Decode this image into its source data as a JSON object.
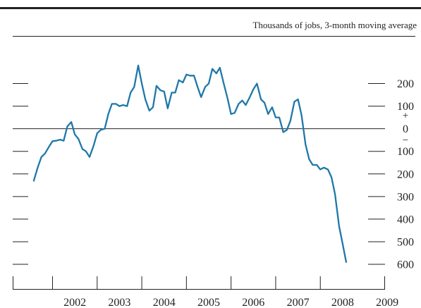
{
  "chart_data": {
    "type": "line",
    "unit_label": "Thousands of jobs, 3-month moving average",
    "x_tick_labels": [
      "2002",
      "2003",
      "2004",
      "2005",
      "2006",
      "2007",
      "2008",
      "2009"
    ],
    "y_tick_labels": [
      "200",
      "100",
      "0",
      "100",
      "200",
      "300",
      "400",
      "500",
      "600"
    ],
    "y_tick_values": [
      200,
      100,
      0,
      -100,
      -200,
      -300,
      -400,
      -500,
      -600
    ],
    "sign_labels": {
      "plus": "+",
      "minus": "−"
    },
    "xlim": [
      2001.55,
      2009.45
    ],
    "ylim": [
      -600,
      300
    ],
    "grid": false,
    "line_color": "#1d78a8",
    "series": [
      {
        "points": [
          [
            2001.58,
            -230
          ],
          [
            2001.67,
            -170
          ],
          [
            2001.75,
            -125
          ],
          [
            2001.83,
            -110
          ],
          [
            2001.92,
            -80
          ],
          [
            2002.0,
            -55
          ],
          [
            2002.08,
            -53
          ],
          [
            2002.17,
            -48
          ],
          [
            2002.25,
            -53
          ],
          [
            2002.33,
            10
          ],
          [
            2002.42,
            30
          ],
          [
            2002.5,
            -25
          ],
          [
            2002.58,
            -45
          ],
          [
            2002.67,
            -90
          ],
          [
            2002.75,
            -100
          ],
          [
            2002.83,
            -125
          ],
          [
            2002.92,
            -75
          ],
          [
            2003.0,
            -20
          ],
          [
            2003.08,
            -5
          ],
          [
            2003.17,
            0
          ],
          [
            2003.25,
            65
          ],
          [
            2003.33,
            110
          ],
          [
            2003.42,
            110
          ],
          [
            2003.5,
            100
          ],
          [
            2003.58,
            105
          ],
          [
            2003.67,
            100
          ],
          [
            2003.75,
            160
          ],
          [
            2003.83,
            185
          ],
          [
            2003.92,
            280
          ],
          [
            2004.0,
            200
          ],
          [
            2004.08,
            130
          ],
          [
            2004.17,
            80
          ],
          [
            2004.25,
            95
          ],
          [
            2004.33,
            190
          ],
          [
            2004.42,
            170
          ],
          [
            2004.5,
            165
          ],
          [
            2004.58,
            90
          ],
          [
            2004.67,
            160
          ],
          [
            2004.75,
            160
          ],
          [
            2004.83,
            215
          ],
          [
            2004.92,
            205
          ],
          [
            2005.0,
            240
          ],
          [
            2005.08,
            235
          ],
          [
            2005.17,
            235
          ],
          [
            2005.25,
            185
          ],
          [
            2005.33,
            140
          ],
          [
            2005.42,
            185
          ],
          [
            2005.5,
            200
          ],
          [
            2005.58,
            265
          ],
          [
            2005.67,
            245
          ],
          [
            2005.75,
            270
          ],
          [
            2005.83,
            205
          ],
          [
            2005.92,
            135
          ],
          [
            2006.0,
            65
          ],
          [
            2006.08,
            70
          ],
          [
            2006.17,
            110
          ],
          [
            2006.25,
            125
          ],
          [
            2006.33,
            105
          ],
          [
            2006.42,
            140
          ],
          [
            2006.5,
            175
          ],
          [
            2006.58,
            200
          ],
          [
            2006.67,
            130
          ],
          [
            2006.75,
            115
          ],
          [
            2006.83,
            65
          ],
          [
            2006.92,
            95
          ],
          [
            2007.0,
            50
          ],
          [
            2007.08,
            50
          ],
          [
            2007.17,
            -15
          ],
          [
            2007.25,
            -5
          ],
          [
            2007.33,
            35
          ],
          [
            2007.42,
            120
          ],
          [
            2007.5,
            130
          ],
          [
            2007.58,
            60
          ],
          [
            2007.67,
            -70
          ],
          [
            2007.75,
            -135
          ],
          [
            2007.83,
            -160
          ],
          [
            2007.92,
            -160
          ],
          [
            2008.0,
            -180
          ],
          [
            2008.08,
            -172
          ],
          [
            2008.17,
            -180
          ],
          [
            2008.25,
            -215
          ],
          [
            2008.33,
            -290
          ],
          [
            2008.42,
            -430
          ],
          [
            2008.5,
            -510
          ],
          [
            2008.58,
            -590
          ]
        ]
      }
    ]
  }
}
